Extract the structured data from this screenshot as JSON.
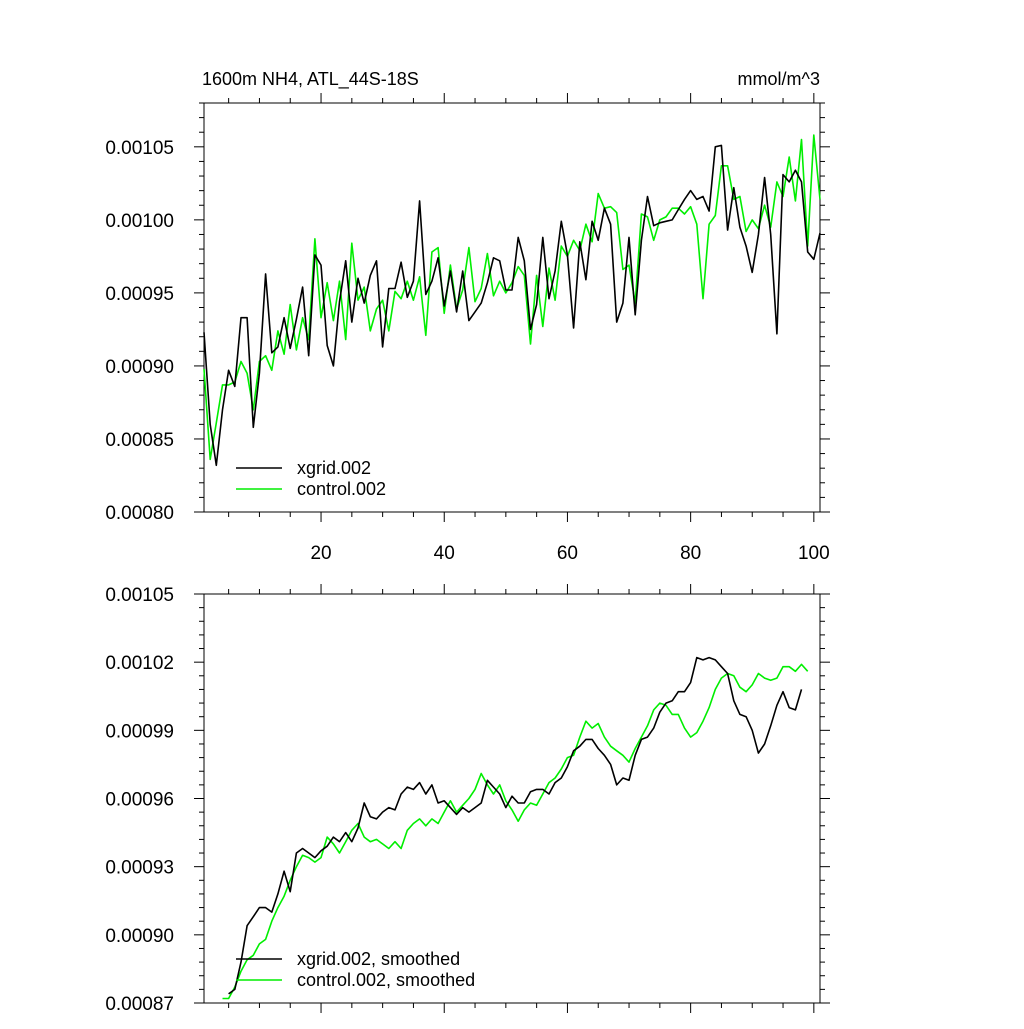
{
  "chart_data": [
    {
      "type": "line",
      "title": "1600m NH4, ATL_44S-18S",
      "units": "mmol/m^3",
      "xlim": [
        1,
        101
      ],
      "ylim": [
        0.0008,
        0.00108
      ],
      "x_ticks": [
        20,
        40,
        60,
        80,
        100
      ],
      "x_tick_labels": [
        "20",
        "40",
        "60",
        "80",
        "100"
      ],
      "y_ticks": [
        0.0008,
        0.00085,
        0.0009,
        0.00095,
        0.001,
        0.00105
      ],
      "y_tick_labels": [
        "0.00080",
        "0.00085",
        "0.00090",
        "0.00095",
        "0.00100",
        "0.00105"
      ],
      "legend_position": "bottom-left",
      "x": [
        1,
        2,
        3,
        4,
        5,
        6,
        7,
        8,
        9,
        10,
        11,
        12,
        13,
        14,
        15,
        16,
        17,
        18,
        19,
        20,
        21,
        22,
        23,
        24,
        25,
        26,
        27,
        28,
        29,
        30,
        31,
        32,
        33,
        34,
        35,
        36,
        37,
        38,
        39,
        40,
        41,
        42,
        43,
        44,
        45,
        46,
        47,
        48,
        49,
        50,
        51,
        52,
        53,
        54,
        55,
        56,
        57,
        58,
        59,
        60,
        61,
        62,
        63,
        64,
        65,
        66,
        67,
        68,
        69,
        70,
        71,
        72,
        73,
        74,
        75,
        76,
        77,
        78,
        79,
        80,
        81,
        82,
        83,
        84,
        85,
        86,
        87,
        88,
        89,
        90,
        91,
        92,
        93,
        94,
        95,
        96,
        97,
        98,
        99,
        100,
        101
      ],
      "series": [
        {
          "name": "xgrid.002",
          "color": "#000000",
          "values": [
            0.000923,
            0.00086,
            0.000832,
            0.00087,
            0.000897,
            0.000886,
            0.000933,
            0.000933,
            0.000858,
            0.000895,
            0.000963,
            0.000909,
            0.000913,
            0.000933,
            0.000912,
            0.000932,
            0.000954,
            0.000907,
            0.000976,
            0.000969,
            0.000914,
            0.0009,
            0.000944,
            0.000972,
            0.00093,
            0.00096,
            0.000943,
            0.000962,
            0.000972,
            0.000913,
            0.000953,
            0.000953,
            0.000971,
            0.000947,
            0.000958,
            0.001013,
            0.000949,
            0.000958,
            0.000974,
            0.000941,
            0.000965,
            0.000937,
            0.000965,
            0.000931,
            0.000937,
            0.000943,
            0.000957,
            0.000974,
            0.000972,
            0.000952,
            0.000952,
            0.000988,
            0.000972,
            0.000925,
            0.000942,
            0.000988,
            0.000946,
            0.000965,
            0.000999,
            0.000976,
            0.000926,
            0.000985,
            0.000959,
            0.000999,
            0.000986,
            0.001008,
            0.000997,
            0.00093,
            0.000943,
            0.000988,
            0.000935,
            0.000986,
            0.001016,
            0.000996,
            0.000998,
            0.000999,
            0.001,
            0.001007,
            0.001014,
            0.00102,
            0.001014,
            0.001016,
            0.001006,
            0.00105,
            0.001051,
            0.000993,
            0.001022,
            0.000995,
            0.000982,
            0.000964,
            0.00099,
            0.001029,
            0.00099,
            0.000922,
            0.001031,
            0.001026,
            0.001034,
            0.001026,
            0.000978,
            0.000973,
            0.000991
          ]
        },
        {
          "name": "control.002",
          "color": "#00ee00",
          "values": [
            0.000898,
            0.000836,
            0.000861,
            0.000887,
            0.000887,
            0.000889,
            0.000903,
            0.000895,
            0.00087,
            0.000903,
            0.000907,
            0.000897,
            0.000924,
            0.000908,
            0.000942,
            0.000911,
            0.000933,
            0.000918,
            0.000987,
            0.000933,
            0.000957,
            0.000931,
            0.000958,
            0.000918,
            0.000984,
            0.000945,
            0.000954,
            0.000924,
            0.000939,
            0.000945,
            0.000924,
            0.000951,
            0.000946,
            0.000958,
            0.000945,
            0.000961,
            0.000921,
            0.000978,
            0.000981,
            0.000936,
            0.000969,
            0.000939,
            0.000952,
            0.000981,
            0.000944,
            0.000953,
            0.000977,
            0.000948,
            0.000958,
            0.00095,
            0.000957,
            0.000968,
            0.000962,
            0.000915,
            0.000962,
            0.000927,
            0.000967,
            0.000945,
            0.000982,
            0.000975,
            0.000986,
            0.000979,
            0.000997,
            0.000985,
            0.001018,
            0.001008,
            0.001009,
            0.001005,
            0.000966,
            0.000969,
            0.000943,
            0.001004,
            0.001002,
            0.000986,
            0.001,
            0.001002,
            0.001008,
            0.001008,
            0.001004,
            0.001009,
            0.000997,
            0.000946,
            0.000997,
            0.001003,
            0.001037,
            0.001037,
            0.001014,
            0.001016,
            0.000992,
            0.001,
            0.000994,
            0.00101,
            0.000995,
            0.001026,
            0.001016,
            0.001043,
            0.001013,
            0.001055,
            0.000982,
            0.001058,
            0.001014
          ]
        }
      ]
    },
    {
      "type": "line",
      "xlim": [
        1,
        101
      ],
      "ylim": [
        0.00087,
        0.00105
      ],
      "x_ticks": [
        20,
        40,
        60,
        80,
        100
      ],
      "y_ticks": [
        0.00087,
        0.0009,
        0.00093,
        0.00096,
        0.00099,
        0.00102,
        0.00105
      ],
      "y_tick_labels": [
        "0.00087",
        "0.00090",
        "0.00093",
        "0.00096",
        "0.00099",
        "0.00102",
        "0.00105"
      ],
      "legend_position": "bottom-left",
      "series": [
        {
          "name": "xgrid.002, smoothed",
          "color": "#000000",
          "x": [
            5,
            6,
            7,
            8,
            9,
            10,
            11,
            12,
            13,
            14,
            15,
            16,
            17,
            18,
            19,
            20,
            21,
            22,
            23,
            24,
            25,
            26,
            27,
            28,
            29,
            30,
            31,
            32,
            33,
            34,
            35,
            36,
            37,
            38,
            39,
            40,
            41,
            42,
            43,
            44,
            45,
            46,
            47,
            48,
            49,
            50,
            51,
            52,
            53,
            54,
            55,
            56,
            57,
            58,
            59,
            60,
            61,
            62,
            63,
            64,
            65,
            66,
            67,
            68,
            69,
            70,
            71,
            72,
            73,
            74,
            75,
            76,
            77,
            78,
            79,
            80,
            81,
            82,
            83,
            84,
            85,
            86,
            87,
            88,
            89,
            90,
            91,
            92,
            93,
            94,
            95,
            96,
            97,
            98
          ],
          "values": [
            0.000874,
            0.000876,
            0.000888,
            0.000904,
            0.000908,
            0.000912,
            0.000912,
            0.00091,
            0.000918,
            0.000928,
            0.000919,
            0.000936,
            0.000938,
            0.000936,
            0.000934,
            0.000937,
            0.000939,
            0.000943,
            0.000941,
            0.000945,
            0.000941,
            0.000947,
            0.000958,
            0.000952,
            0.000951,
            0.000954,
            0.000956,
            0.000955,
            0.000962,
            0.000965,
            0.000964,
            0.000967,
            0.000962,
            0.000966,
            0.000958,
            0.000959,
            0.000956,
            0.000953,
            0.000956,
            0.000954,
            0.000956,
            0.000958,
            0.000968,
            0.000965,
            0.000962,
            0.000956,
            0.000961,
            0.000958,
            0.000958,
            0.000963,
            0.000964,
            0.000964,
            0.000962,
            0.000967,
            0.000969,
            0.000974,
            0.000981,
            0.000983,
            0.000986,
            0.000986,
            0.000982,
            0.000979,
            0.000975,
            0.000966,
            0.000969,
            0.000968,
            0.000979,
            0.000986,
            0.000987,
            0.000991,
            0.000998,
            0.001002,
            0.001003,
            0.001007,
            0.001007,
            0.001011,
            0.001022,
            0.001021,
            0.001022,
            0.001021,
            0.001018,
            0.001015,
            0.001003,
            0.000997,
            0.000996,
            0.00099,
            0.00098,
            0.000984,
            0.000992,
            0.001001,
            0.001007,
            0.001,
            0.000999,
            0.001008
          ]
        },
        {
          "name": "control.002, smoothed",
          "color": "#00ee00",
          "x": [
            4,
            5,
            6,
            7,
            8,
            9,
            10,
            11,
            12,
            13,
            14,
            15,
            16,
            17,
            18,
            19,
            20,
            21,
            22,
            23,
            24,
            25,
            26,
            27,
            28,
            29,
            30,
            31,
            32,
            33,
            34,
            35,
            36,
            37,
            38,
            39,
            40,
            41,
            42,
            43,
            44,
            45,
            46,
            47,
            48,
            49,
            50,
            51,
            52,
            53,
            54,
            55,
            56,
            57,
            58,
            59,
            60,
            61,
            62,
            63,
            64,
            65,
            66,
            67,
            68,
            69,
            70,
            71,
            72,
            73,
            74,
            75,
            76,
            77,
            78,
            79,
            80,
            81,
            82,
            83,
            84,
            85,
            86,
            87,
            88,
            89,
            90,
            91,
            92,
            93,
            94,
            95,
            96,
            97,
            98,
            99
          ],
          "values": [
            0.000872,
            0.000872,
            0.000877,
            0.000884,
            0.000889,
            0.000891,
            0.000896,
            0.000898,
            0.000906,
            0.000912,
            0.000917,
            0.000924,
            0.00093,
            0.000935,
            0.000934,
            0.000932,
            0.000934,
            0.000943,
            0.00094,
            0.000936,
            0.000941,
            0.000946,
            0.000949,
            0.000943,
            0.000941,
            0.000942,
            0.00094,
            0.000938,
            0.000941,
            0.000938,
            0.000946,
            0.000949,
            0.000951,
            0.000948,
            0.000951,
            0.000949,
            0.000954,
            0.000959,
            0.000954,
            0.000957,
            0.00096,
            0.000964,
            0.000971,
            0.000966,
            0.000962,
            0.000966,
            0.000959,
            0.000955,
            0.00095,
            0.000955,
            0.000958,
            0.000957,
            0.000962,
            0.000967,
            0.000969,
            0.000973,
            0.000978,
            0.000979,
            0.000987,
            0.000994,
            0.000991,
            0.000993,
            0.000987,
            0.000983,
            0.000981,
            0.000979,
            0.000976,
            0.000982,
            0.000987,
            0.000992,
            0.000999,
            0.001002,
            0.001001,
            0.000997,
            0.000997,
            0.000991,
            0.000987,
            0.000989,
            0.000994,
            0.001,
            0.001008,
            0.001013,
            0.001015,
            0.001014,
            0.001009,
            0.001007,
            0.00101,
            0.001015,
            0.001013,
            0.001012,
            0.001013,
            0.001018,
            0.001018,
            0.001016,
            0.001019,
            0.001016
          ]
        }
      ]
    }
  ]
}
